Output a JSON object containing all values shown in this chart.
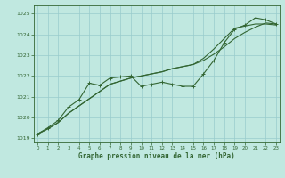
{
  "line1_marked": [
    1019.2,
    1019.5,
    1019.85,
    1020.5,
    1020.85,
    1021.65,
    1021.55,
    1021.9,
    1021.95,
    1022.0,
    1021.5,
    1021.6,
    1021.7,
    1021.6,
    1021.5,
    1021.5,
    1022.1,
    1022.75,
    1023.6,
    1024.25,
    1024.45,
    1024.8,
    1024.7,
    1024.5
  ],
  "line2_diag": [
    1019.2,
    1019.45,
    1019.75,
    1020.2,
    1020.55,
    1020.9,
    1021.25,
    1021.6,
    1021.75,
    1021.9,
    1022.0,
    1022.1,
    1022.2,
    1022.35,
    1022.45,
    1022.55,
    1022.75,
    1023.05,
    1023.4,
    1023.8,
    1024.1,
    1024.35,
    1024.55,
    1024.5
  ],
  "line3_diag": [
    1019.2,
    1019.45,
    1019.75,
    1020.2,
    1020.55,
    1020.9,
    1021.25,
    1021.6,
    1021.75,
    1021.9,
    1022.0,
    1022.1,
    1022.2,
    1022.35,
    1022.45,
    1022.55,
    1022.85,
    1023.3,
    1023.8,
    1024.3,
    1024.4,
    1024.5,
    1024.5,
    1024.45
  ],
  "x": [
    0,
    1,
    2,
    3,
    4,
    5,
    6,
    7,
    8,
    9,
    10,
    11,
    12,
    13,
    14,
    15,
    16,
    17,
    18,
    19,
    20,
    21,
    22,
    23
  ],
  "line_color": "#336633",
  "bg_color": "#c0e8e0",
  "grid_color": "#99cccc",
  "xlabel": "Graphe pression niveau de la mer (hPa)",
  "ylim": [
    1018.8,
    1025.4
  ],
  "yticks": [
    1019,
    1020,
    1021,
    1022,
    1023,
    1024,
    1025
  ],
  "xticks": [
    0,
    1,
    2,
    3,
    4,
    5,
    6,
    7,
    8,
    9,
    10,
    11,
    12,
    13,
    14,
    15,
    16,
    17,
    18,
    19,
    20,
    21,
    22,
    23
  ]
}
